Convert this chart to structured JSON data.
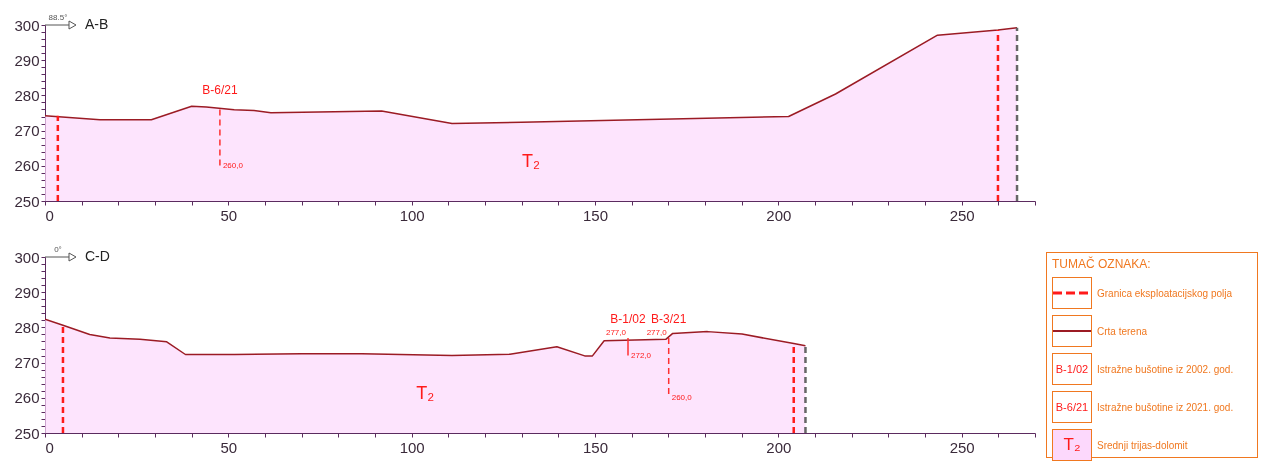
{
  "chart_data": [
    {
      "type": "area",
      "title": "A-B",
      "annotations": [
        "88.5°",
        "T₂",
        {
          "text": "B-6/21",
          "x": 47.7,
          "y": 276
        },
        {
          "text": "260,0",
          "x": 47.7,
          "y": 260
        }
      ],
      "series": [
        {
          "type": "area",
          "color": "#fcd8fc",
          "x": [
            0,
            15,
            29,
            40,
            44,
            51.6,
            57,
            61.6,
            91.8,
            111,
            130,
            202.8,
            215.6,
            243.4,
            259.9,
            265.1
          ],
          "values": [
            274.2,
            273.1,
            273.1,
            276.9,
            276.7,
            275.9,
            275.7,
            275.1,
            275.6,
            272.0,
            272.4,
            274.0,
            280.4,
            297.1,
            298.6,
            299.2
          ]
        },
        {
          "type": "line",
          "line_style": "dashed",
          "color": "#ff1a1a",
          "x": [
            3.5,
            3.5
          ],
          "values": [
            250,
            274.2
          ]
        },
        {
          "type": "line",
          "line_style": "dashed",
          "color": "#ff1a1a",
          "x": [
            259.9,
            259.9
          ],
          "values": [
            250,
            298.6
          ]
        },
        {
          "type": "line",
          "line_style": "dashed",
          "color": "#666666",
          "x": [
            265.1,
            265.1
          ],
          "values": [
            250,
            299.2
          ]
        },
        {
          "type": "line",
          "line_style": "dashed",
          "color": "#ff3030",
          "x": [
            47.7,
            47.7
          ],
          "values": [
            276,
            260
          ]
        }
      ],
      "xlim": [
        0,
        270
      ],
      "ylim": [
        250,
        300
      ],
      "xticks": [
        0,
        {
          "value": 10,
          "label": null
        },
        {
          "value": 20,
          "label": null
        },
        {
          "value": 30,
          "label": null
        },
        {
          "value": 40,
          "label": null
        },
        50,
        {
          "value": 60,
          "label": null
        },
        {
          "value": 70,
          "label": null
        },
        {
          "value": 80,
          "label": null
        },
        {
          "value": 90,
          "label": null
        },
        100,
        {
          "value": 110,
          "label": null
        },
        {
          "value": 120,
          "label": null
        },
        {
          "value": 130,
          "label": null
        },
        {
          "value": 140,
          "label": null
        },
        150,
        {
          "value": 160,
          "label": null
        },
        {
          "value": 170,
          "label": null
        },
        {
          "value": 180,
          "label": null
        },
        {
          "value": 190,
          "label": null
        },
        200,
        {
          "value": 210,
          "label": null
        },
        {
          "value": 220,
          "label": null
        },
        {
          "value": 230,
          "label": null
        },
        {
          "value": 240,
          "label": null
        },
        250,
        {
          "value": 260,
          "label": null
        },
        {
          "value": 270,
          "label": null
        }
      ],
      "yticks": [
        250,
        {
          "value": 252,
          "label": null
        },
        {
          "value": 254,
          "label": null
        },
        {
          "value": 256,
          "label": null
        },
        {
          "value": 258,
          "label": null
        },
        260,
        {
          "value": 262,
          "label": null
        },
        {
          "value": 264,
          "label": null
        },
        {
          "value": 266,
          "label": null
        },
        {
          "value": 268,
          "label": null
        },
        270,
        {
          "value": 272,
          "label": null
        },
        {
          "value": 274,
          "label": null
        },
        {
          "value": 276,
          "label": null
        },
        {
          "value": 278,
          "label": null
        },
        280,
        {
          "value": 282,
          "label": null
        },
        {
          "value": 284,
          "label": null
        },
        {
          "value": 286,
          "label": null
        },
        {
          "value": 288,
          "label": null
        },
        290,
        {
          "value": 292,
          "label": null
        },
        {
          "value": 294,
          "label": null
        },
        {
          "value": 296,
          "label": null
        },
        {
          "value": 298,
          "label": null
        },
        300
      ],
      "grid": false,
      "marker": "none"
    },
    {
      "type": "area",
      "title": "C-D",
      "annotations": [
        "0°",
        "T₂",
        {
          "text": "B-1/02",
          "x": 159,
          "y": 277
        },
        {
          "text": "277,0",
          "x": 159,
          "y": 277
        },
        {
          "text": "272,0",
          "x": 159,
          "y": 272
        },
        {
          "text": "B-3/21",
          "x": 170.1,
          "y": 277
        },
        {
          "text": "277,0",
          "x": 170.1,
          "y": 277
        },
        {
          "text": "260,0",
          "x": 170.1,
          "y": 260
        }
      ],
      "series": [
        {
          "type": "area",
          "color": "#fcd8fc",
          "x": [
            0,
            4.9,
            12.2,
            17.7,
            25.9,
            33.2,
            38.3,
            51.6,
            69.9,
            86.4,
            111,
            126.8,
            139.6,
            147.2,
            149.3,
            152.5,
            169.3,
            171.2,
            180.7,
            190.1,
            204.2,
            207.4
          ],
          "values": [
            282.3,
            280.6,
            278.0,
            277.0,
            276.6,
            275.9,
            272.3,
            272.3,
            272.5,
            272.5,
            272.0,
            272.4,
            274.5,
            271.9,
            271.9,
            276.2,
            276.6,
            278.3,
            278.8,
            278.1,
            275.4,
            274.8
          ]
        },
        {
          "type": "line",
          "line_style": "dashed",
          "color": "#ff1a1a",
          "x": [
            4.9,
            4.9
          ],
          "values": [
            250,
            280.6
          ]
        },
        {
          "type": "line",
          "line_style": "dashed",
          "color": "#ff1a1a",
          "x": [
            204.2,
            204.2
          ],
          "values": [
            250,
            275.4
          ]
        },
        {
          "type": "line",
          "line_style": "dashed",
          "color": "#666666",
          "x": [
            207.4,
            207.4
          ],
          "values": [
            250,
            274.8
          ]
        },
        {
          "type": "line",
          "line_style": "solid",
          "color": "#ff3030",
          "x": [
            159,
            159
          ],
          "values": [
            277,
            272
          ]
        },
        {
          "type": "line",
          "line_style": "dashed",
          "color": "#ff3030",
          "x": [
            170.1,
            170.1
          ],
          "values": [
            277,
            260
          ]
        }
      ],
      "xlim": [
        0,
        270
      ],
      "ylim": [
        250,
        300
      ],
      "xticks": [
        0,
        {
          "value": 10,
          "label": null
        },
        {
          "value": 20,
          "label": null
        },
        {
          "value": 30,
          "label": null
        },
        {
          "value": 40,
          "label": null
        },
        50,
        {
          "value": 60,
          "label": null
        },
        {
          "value": 70,
          "label": null
        },
        {
          "value": 80,
          "label": null
        },
        {
          "value": 90,
          "label": null
        },
        100,
        {
          "value": 110,
          "label": null
        },
        {
          "value": 120,
          "label": null
        },
        {
          "value": 130,
          "label": null
        },
        {
          "value": 140,
          "label": null
        },
        150,
        {
          "value": 160,
          "label": null
        },
        {
          "value": 170,
          "label": null
        },
        {
          "value": 180,
          "label": null
        },
        {
          "value": 190,
          "label": null
        },
        200,
        {
          "value": 210,
          "label": null
        },
        {
          "value": 220,
          "label": null
        },
        {
          "value": 230,
          "label": null
        },
        {
          "value": 240,
          "label": null
        },
        250,
        {
          "value": 260,
          "label": null
        },
        {
          "value": 270,
          "label": null
        }
      ],
      "yticks": [
        250,
        {
          "value": 252,
          "label": null
        },
        {
          "value": 254,
          "label": null
        },
        {
          "value": 256,
          "label": null
        },
        {
          "value": 258,
          "label": null
        },
        260,
        {
          "value": 262,
          "label": null
        },
        {
          "value": 264,
          "label": null
        },
        {
          "value": 266,
          "label": null
        },
        {
          "value": 268,
          "label": null
        },
        270,
        {
          "value": 272,
          "label": null
        },
        {
          "value": 274,
          "label": null
        },
        {
          "value": 276,
          "label": null
        },
        {
          "value": 278,
          "label": null
        },
        280,
        {
          "value": 282,
          "label": null
        },
        {
          "value": 284,
          "label": null
        },
        {
          "value": 286,
          "label": null
        },
        {
          "value": 288,
          "label": null
        },
        290,
        {
          "value": 292,
          "label": null
        },
        {
          "value": 294,
          "label": null
        },
        {
          "value": 296,
          "label": null
        },
        {
          "value": 298,
          "label": null
        },
        300
      ],
      "grid": false,
      "marker": "none"
    },
    {
      "type": "other",
      "title": "TUMAČ OZNAKA:",
      "annotations": [
        "Granica eksploatacijskog polja",
        "Crta terena",
        "B-1/02",
        "Istražne bušotine iz 2002. god.",
        "B-6/21",
        "Istražne bušotine iz 2021. god.",
        "T₂",
        "Srednji trijas-dolomit"
      ]
    }
  ]
}
